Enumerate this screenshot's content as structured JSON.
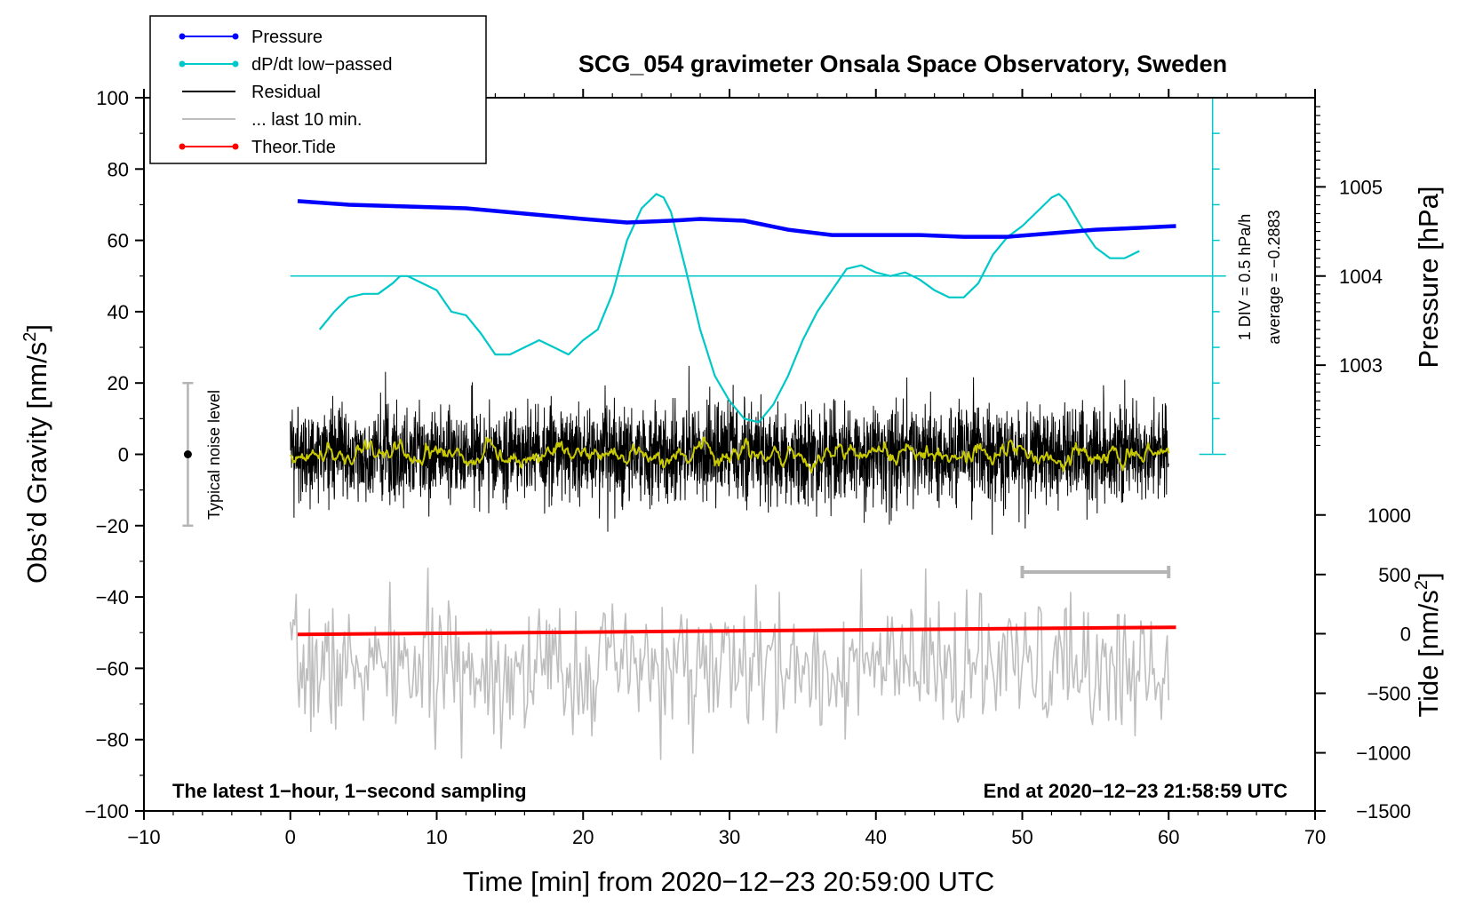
{
  "chart_data": {
    "type": "line",
    "title": "SCG_054 gravimeter Onsala Space Observatory, Sweden",
    "xlabel": "Time [min] from 2020−12−23 20:59:00 UTC",
    "ylabel": "Obs’d Gravity [nm/s²]",
    "xlim": [
      -10,
      70
    ],
    "ylim": [
      -100,
      100
    ],
    "x_ticks": [
      -10,
      0,
      10,
      20,
      30,
      40,
      50,
      60,
      70
    ],
    "x_tick_labels": [
      "−10",
      "0",
      "10",
      "20",
      "30",
      "40",
      "50",
      "60",
      "70"
    ],
    "y_ticks": [
      100,
      80,
      60,
      40,
      20,
      0,
      -20,
      -40,
      -60,
      -80,
      -100
    ],
    "y_tick_labels": [
      "100",
      "80",
      "60",
      "40",
      "20",
      "0",
      "−20",
      "−40",
      "−60",
      "−80",
      "−100"
    ],
    "ylabel_base": "Obs’d Gravity [nm/s",
    "ylabel_sup": "2",
    "ylabel_end": "]",
    "pressure_axis": {
      "label": "Pressure [hPa]",
      "ticks": [
        1005,
        1004,
        1003
      ],
      "tick_labels": [
        "1005",
        "1004",
        "1003"
      ],
      "gravity_equiv": [
        75,
        50,
        25
      ]
    },
    "tide_axis": {
      "label_base": "Tide [nm/s",
      "label_sup": "2",
      "label_end": "]",
      "ticks": [
        1000,
        500,
        0,
        -500,
        -1000,
        -1500
      ],
      "tick_labels": [
        "1000",
        "500",
        "0",
        "−500",
        "−1000",
        "−1500"
      ],
      "gravity_equiv": [
        -17,
        -33.7,
        -50.3,
        -67,
        -83.7,
        -100
      ]
    },
    "dpdt_scale": {
      "axis_x": 63.0,
      "range": [
        0,
        100
      ],
      "label": "1 DIV = 0.5 hPa/h",
      "average_label": "average = −0.2883",
      "baseline": 50
    },
    "noise_bar": {
      "x": -7,
      "center": 0,
      "half_range": 20,
      "label": "Typical noise level"
    },
    "last10_bar": {
      "x": [
        50,
        60
      ],
      "y": -33
    },
    "legend": [
      {
        "label": "Pressure",
        "color": "#0000ff",
        "marker": "dot"
      },
      {
        "label": "dP/dt low−passed",
        "color": "#00c8c8",
        "marker": "dot"
      },
      {
        "label": "Residual",
        "color": "#000000",
        "marker": "none"
      },
      {
        "label": "... last 10 min.",
        "color": "#bebebe",
        "marker": "none"
      },
      {
        "label": "Theor.Tide",
        "color": "#ff0000",
        "marker": "dot"
      }
    ],
    "footer_left": "The latest 1−hour, 1−second sampling",
    "footer_right": "End at 2020−12−23 21:58:59 UTC",
    "series": [
      {
        "name": "Pressure",
        "color": "#0000ff",
        "x": [
          0.5,
          4,
          8,
          12,
          16,
          20,
          23,
          26,
          28,
          31,
          34,
          37,
          40,
          43,
          46,
          49,
          52,
          55,
          58,
          60.5
        ],
        "y": [
          71,
          70,
          69.5,
          69,
          67.5,
          66,
          65,
          65.5,
          66,
          65.5,
          63,
          61.5,
          61.5,
          61.5,
          61,
          61,
          62,
          63,
          63.5,
          64
        ]
      },
      {
        "name": "dP/dt low-passed",
        "color": "#00c8c8",
        "x": [
          2,
          3,
          4,
          5,
          6,
          7,
          7.5,
          8,
          9,
          10,
          11,
          12,
          13,
          14,
          15,
          16,
          17,
          18,
          19,
          20,
          21,
          22,
          23,
          24,
          25,
          25.5,
          26,
          27,
          28,
          29,
          30,
          31,
          32,
          33,
          34,
          35,
          36,
          37,
          38,
          39,
          40,
          41,
          42,
          43,
          44,
          45,
          46,
          47,
          48,
          49,
          50,
          51,
          52,
          52.5,
          53,
          54,
          55,
          56,
          57,
          58
        ],
        "y": [
          35,
          40,
          44,
          45,
          45,
          48,
          50,
          50,
          48,
          46,
          40,
          39,
          34,
          28,
          28,
          30,
          32,
          30,
          28,
          32,
          35,
          45,
          60,
          69,
          73,
          72,
          68,
          52,
          35,
          22,
          15,
          10,
          9,
          14,
          22,
          32,
          40,
          46,
          52,
          53,
          51,
          50,
          51,
          49,
          46,
          44,
          44,
          48,
          56,
          61,
          64,
          68,
          72,
          73,
          71,
          64,
          58,
          55,
          55,
          57
        ]
      },
      {
        "name": "Residual",
        "color": "#000000",
        "x_range": [
          0,
          60
        ],
        "amplitude": 12
      },
      {
        "name": "Residual smoothed",
        "color": "#c8c800",
        "x_range": [
          0,
          60
        ],
        "amplitude": 2
      },
      {
        "name": "... last 10 min.",
        "color": "#bebebe",
        "x_range": [
          0,
          60
        ],
        "center": -60,
        "amplitude": 12
      },
      {
        "name": "Theor.Tide",
        "color": "#ff0000",
        "x": [
          0.5,
          60.5
        ],
        "y": [
          -50.5,
          -48.5
        ]
      }
    ]
  }
}
